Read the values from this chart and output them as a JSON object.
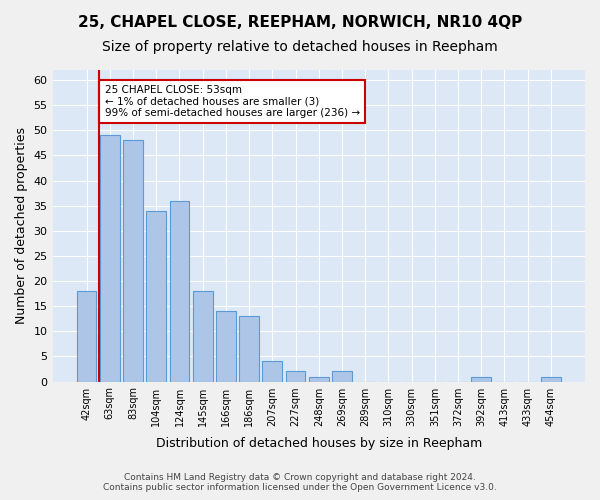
{
  "title": "25, CHAPEL CLOSE, REEPHAM, NORWICH, NR10 4QP",
  "subtitle": "Size of property relative to detached houses in Reepham",
  "xlabel": "Distribution of detached houses by size in Reepham",
  "ylabel": "Number of detached properties",
  "bar_values": [
    18,
    49,
    48,
    34,
    36,
    18,
    14,
    13,
    4,
    2,
    1,
    2,
    0,
    0,
    0,
    0,
    0,
    1,
    0,
    0,
    1
  ],
  "categories": [
    "42sqm",
    "63sqm",
    "83sqm",
    "104sqm",
    "124sqm",
    "145sqm",
    "166sqm",
    "186sqm",
    "207sqm",
    "227sqm",
    "248sqm",
    "269sqm",
    "289sqm",
    "310sqm",
    "330sqm",
    "351sqm",
    "372sqm",
    "392sqm",
    "413sqm",
    "433sqm",
    "454sqm"
  ],
  "bar_color": "#adc6e8",
  "bar_edge_color": "#5b9bd5",
  "bar_width": 0.85,
  "ylim": [
    0,
    62
  ],
  "yticks": [
    0,
    5,
    10,
    15,
    20,
    25,
    30,
    35,
    40,
    45,
    50,
    55,
    60
  ],
  "property_line_color": "#cc0000",
  "annotation_title": "25 CHAPEL CLOSE: 53sqm",
  "annotation_line1": "← 1% of detached houses are smaller (3)",
  "annotation_line2": "99% of semi-detached houses are larger (236) →",
  "annotation_box_color": "#cc0000",
  "footer_line1": "Contains HM Land Registry data © Crown copyright and database right 2024.",
  "footer_line2": "Contains public sector information licensed under the Open Government Licence v3.0.",
  "bg_color": "#dce8f5",
  "grid_color": "#ffffff",
  "fig_bg_color": "#f0f0f0",
  "title_fontsize": 11,
  "subtitle_fontsize": 10,
  "ylabel_fontsize": 9,
  "xlabel_fontsize": 9,
  "footer_fontsize": 6.5
}
